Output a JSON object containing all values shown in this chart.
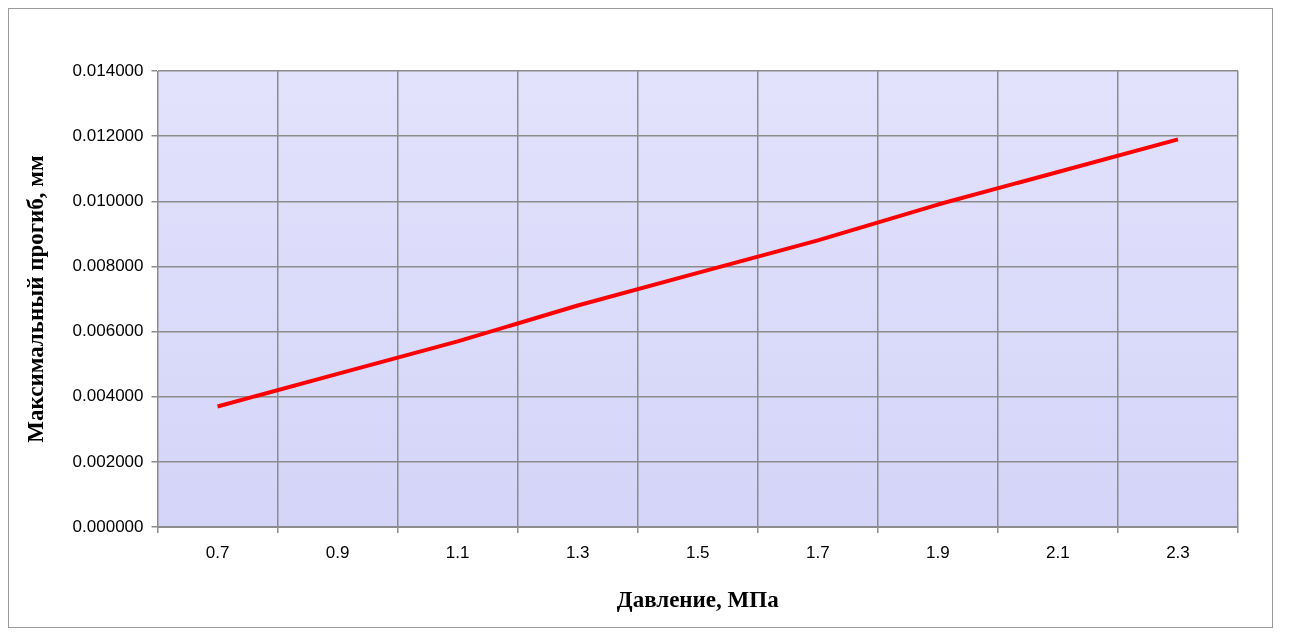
{
  "chart_data": {
    "type": "line",
    "xlabel": "Давление, МПа",
    "ylabel": "Максимальный прогиб, мм",
    "categories": [
      "0.7",
      "0.9",
      "1.1",
      "1.3",
      "1.5",
      "1.7",
      "1.9",
      "2.1",
      "2.3"
    ],
    "series": [
      {
        "color": "#ff0000",
        "values": [
          0.0037,
          0.0047,
          0.0057,
          0.0068,
          0.0078,
          0.0088,
          0.0099,
          0.0109,
          0.0119
        ]
      }
    ],
    "ylim": [
      0,
      0.014
    ],
    "yticks": [
      {
        "value": 0,
        "label": "0.000000"
      },
      {
        "value": 0.002,
        "label": "0.002000"
      },
      {
        "value": 0.004,
        "label": "0.004000"
      },
      {
        "value": 0.006,
        "label": "0.006000"
      },
      {
        "value": 0.008,
        "label": "0.008000"
      },
      {
        "value": 0.01,
        "label": "0.010000"
      },
      {
        "value": 0.012,
        "label": "0.012000"
      },
      {
        "value": 0.014,
        "label": "0.014000"
      }
    ],
    "grid": true,
    "legend": false,
    "marker": "none",
    "line_style": "solid"
  }
}
